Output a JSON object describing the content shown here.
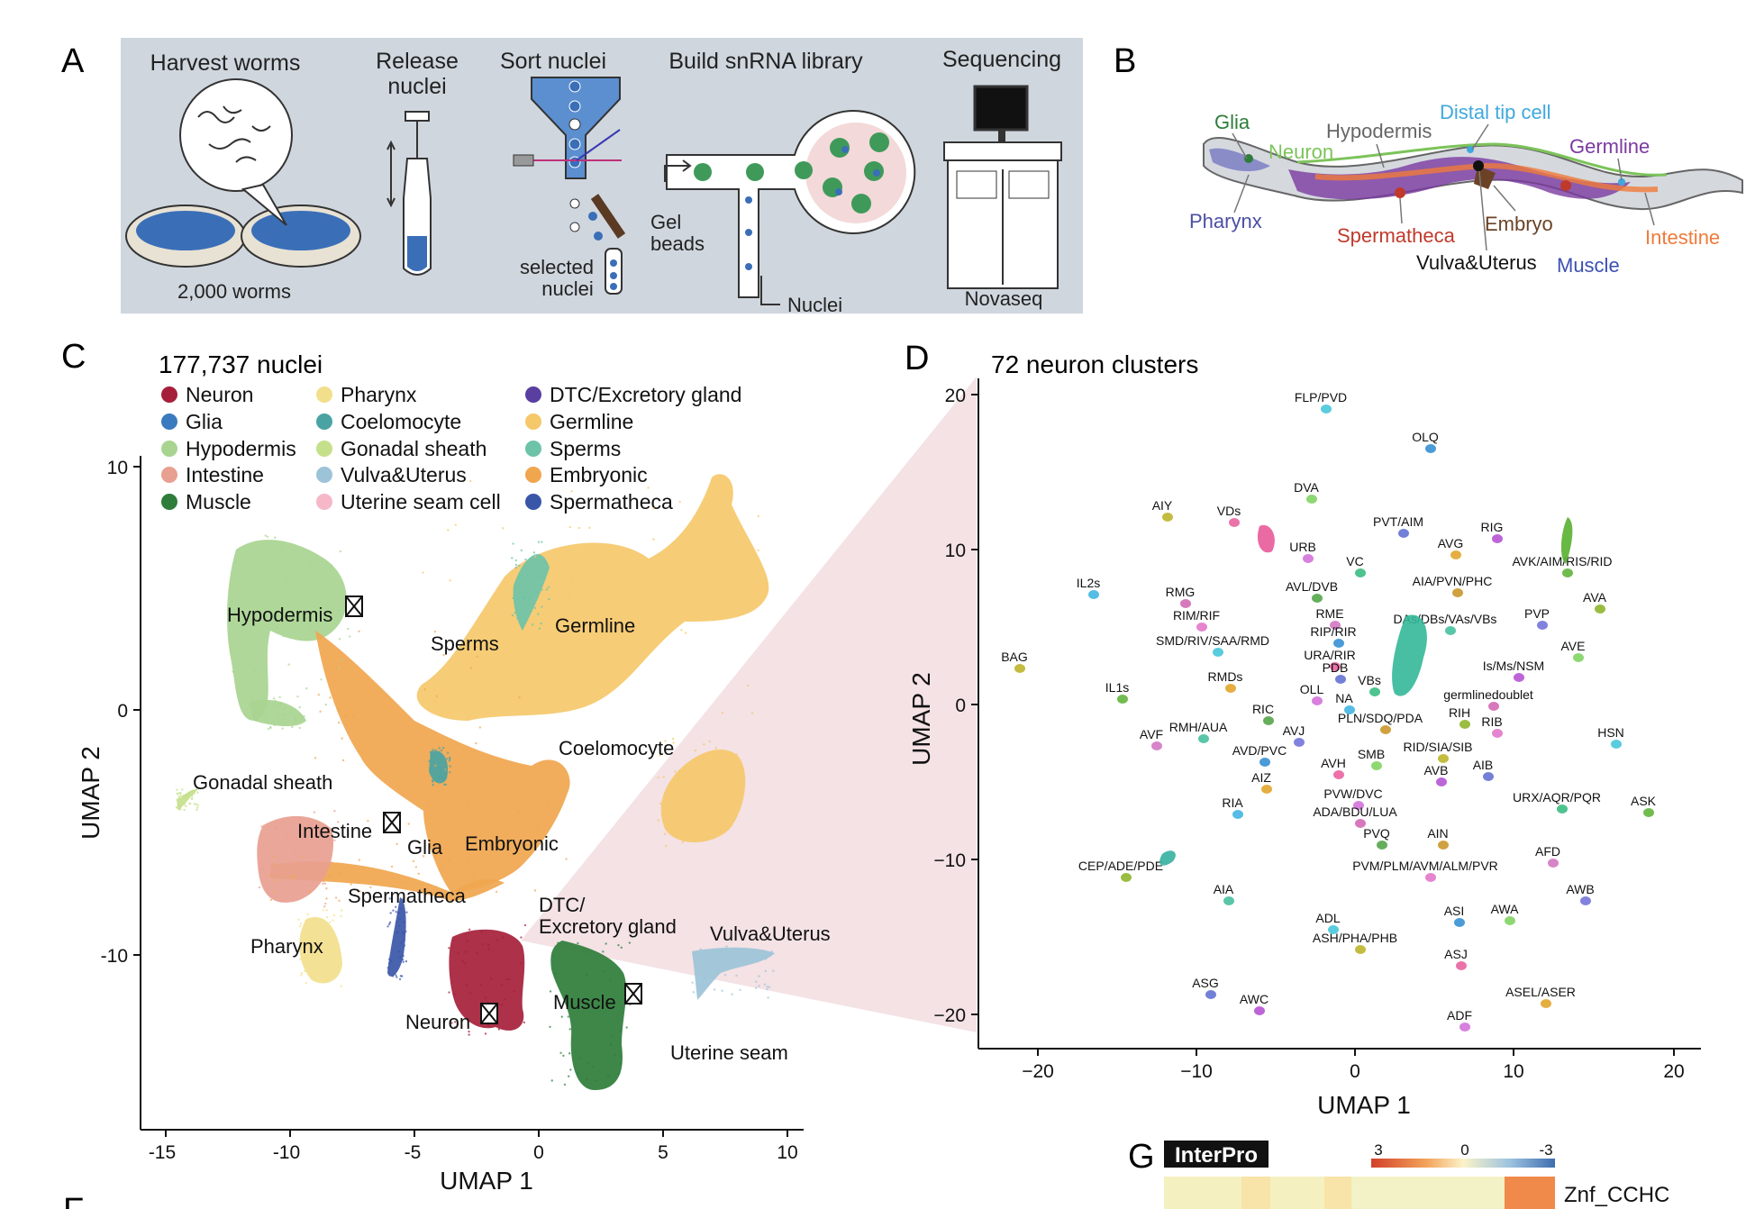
{
  "panel_labels": [
    "A",
    "B",
    "C",
    "D",
    "G",
    "F"
  ],
  "panel_a": {
    "steps": [
      {
        "title": "Harvest worms",
        "caption": "2,000 worms"
      },
      {
        "title": "Release",
        "title2": "nuclei"
      },
      {
        "title": "Sort nuclei",
        "caption": "selected",
        "caption2": "nuclei"
      },
      {
        "title": "Build snRNA library",
        "gel": "Gel",
        "gel2": "beads",
        "nuclei": "Nuclei"
      },
      {
        "title": "Sequencing",
        "caption": "Novaseq"
      }
    ]
  },
  "panel_b": {
    "labels": [
      {
        "text": "Glia",
        "color": "#2e7d3a"
      },
      {
        "text": "Neuron",
        "color": "#7cc35a"
      },
      {
        "text": "Hypodermis",
        "color": "#666666"
      },
      {
        "text": "Distal tip cell",
        "color": "#3fa9dd"
      },
      {
        "text": "Germline",
        "color": "#7a3aa0"
      },
      {
        "text": "Pharynx",
        "color": "#4b4fa3"
      },
      {
        "text": "Spermatheca",
        "color": "#c0392b"
      },
      {
        "text": "Embryo",
        "color": "#6b4226"
      },
      {
        "text": "Intestine",
        "color": "#f07a3a"
      },
      {
        "text": "Vulva&Uterus",
        "color": "#111111"
      },
      {
        "text": "Muscle",
        "color": "#3b4fb3"
      }
    ]
  },
  "panel_c": {
    "title": "177,737 nuclei",
    "legend": [
      {
        "label": "Neuron",
        "color": "#a51f3a"
      },
      {
        "label": "Glia",
        "color": "#3a7bbf"
      },
      {
        "label": "Hypodermis",
        "color": "#a8d490"
      },
      {
        "label": "Intestine",
        "color": "#e8a090"
      },
      {
        "label": "Muscle",
        "color": "#2e7d3a"
      },
      {
        "label": "Pharynx",
        "color": "#f2df8c"
      },
      {
        "label": "Coelomocyte",
        "color": "#4aa3a3"
      },
      {
        "label": "Gonadal sheath",
        "color": "#c5e08a"
      },
      {
        "label": "Vulva&Uterus",
        "color": "#9cc3d8"
      },
      {
        "label": "Uterine seam cell",
        "color": "#f6b8c8"
      },
      {
        "label": "DTC/Excretory gland",
        "color": "#5a3ea0"
      },
      {
        "label": "Germline",
        "color": "#f5c86a"
      },
      {
        "label": "Sperms",
        "color": "#6cc3a8"
      },
      {
        "label": "Embryonic",
        "color": "#f0a64e"
      },
      {
        "label": "Spermatheca",
        "color": "#3a56a8"
      }
    ],
    "cluster_labels": [
      "Hypodermis",
      "Sperms",
      "Germline",
      "Coelomocyte",
      "Gonadal sheath",
      "Intestine",
      "Glia",
      "Embryonic",
      "Spermatheca",
      "DTC/",
      "Excretory gland",
      "Vulva&Uterus",
      "Pharynx",
      "Muscle",
      "Neuron",
      "Uterine seam"
    ],
    "xlabel": "UMAP 1",
    "ylabel": "UMAP 2",
    "xticks": [
      "-15",
      "-10",
      "-5",
      "0",
      "5",
      "10"
    ],
    "yticks": [
      "10",
      "0",
      "-10"
    ]
  },
  "panel_d": {
    "title": "72 neuron clusters",
    "xlabel": "UMAP 1",
    "ylabel": "UMAP 2",
    "xticks": [
      "−20",
      "−10",
      "0",
      "10",
      "20"
    ],
    "yticks": [
      "20",
      "10",
      "0",
      "−10",
      "−20"
    ],
    "clusters": [
      "FLP/PVD",
      "OLQ",
      "DVA",
      "AIY",
      "VDs",
      "PVT/AIM",
      "RIG",
      "AVG",
      "URB",
      "VC",
      "AVK/AIM/RIS/RID",
      "IL2s",
      "RMG",
      "AVL/DVB",
      "AIA/PVN/PHC",
      "AVA",
      "RIM/RIF",
      "RME",
      "DAs/DBs/VAs/VBs",
      "PVP",
      "SMD/RIV/SAA/RMD",
      "RIP/RIR",
      "AVE",
      "BAG",
      "URA/RIR",
      "PDB",
      "Is/Ms/NSM",
      "RMDs",
      "OLL",
      "VBs",
      "IL1s",
      "NA",
      "germlinedoublet",
      "RIC",
      "PLN/SDQ/PDA",
      "RIH",
      "RIB",
      "AVF",
      "RMH/AUA",
      "AVJ",
      "HSN",
      "AVD/PVC",
      "SMB",
      "RID/SIA/SIB",
      "AVH",
      "AIB",
      "AVB",
      "AIZ",
      "PVW/DVC",
      "URX/AQR/PQR",
      "ASK",
      "RIA",
      "ADA/BDU/LUA",
      "PVQ",
      "AIN",
      "CEP/ADE/PDE",
      "PVM/PLM/AVM/ALM/PVR",
      "AFD",
      "AIA",
      "AWB",
      "ADL",
      "ASI",
      "AWA",
      "ASH/PHA/PHB",
      "ASJ",
      "ASG",
      "AWC",
      "ASEL/ASER",
      "ADF"
    ]
  },
  "panel_g": {
    "badge": "InterPro",
    "scale": [
      "3",
      "0",
      "-3"
    ],
    "row_label": "Znf_CCHC"
  }
}
